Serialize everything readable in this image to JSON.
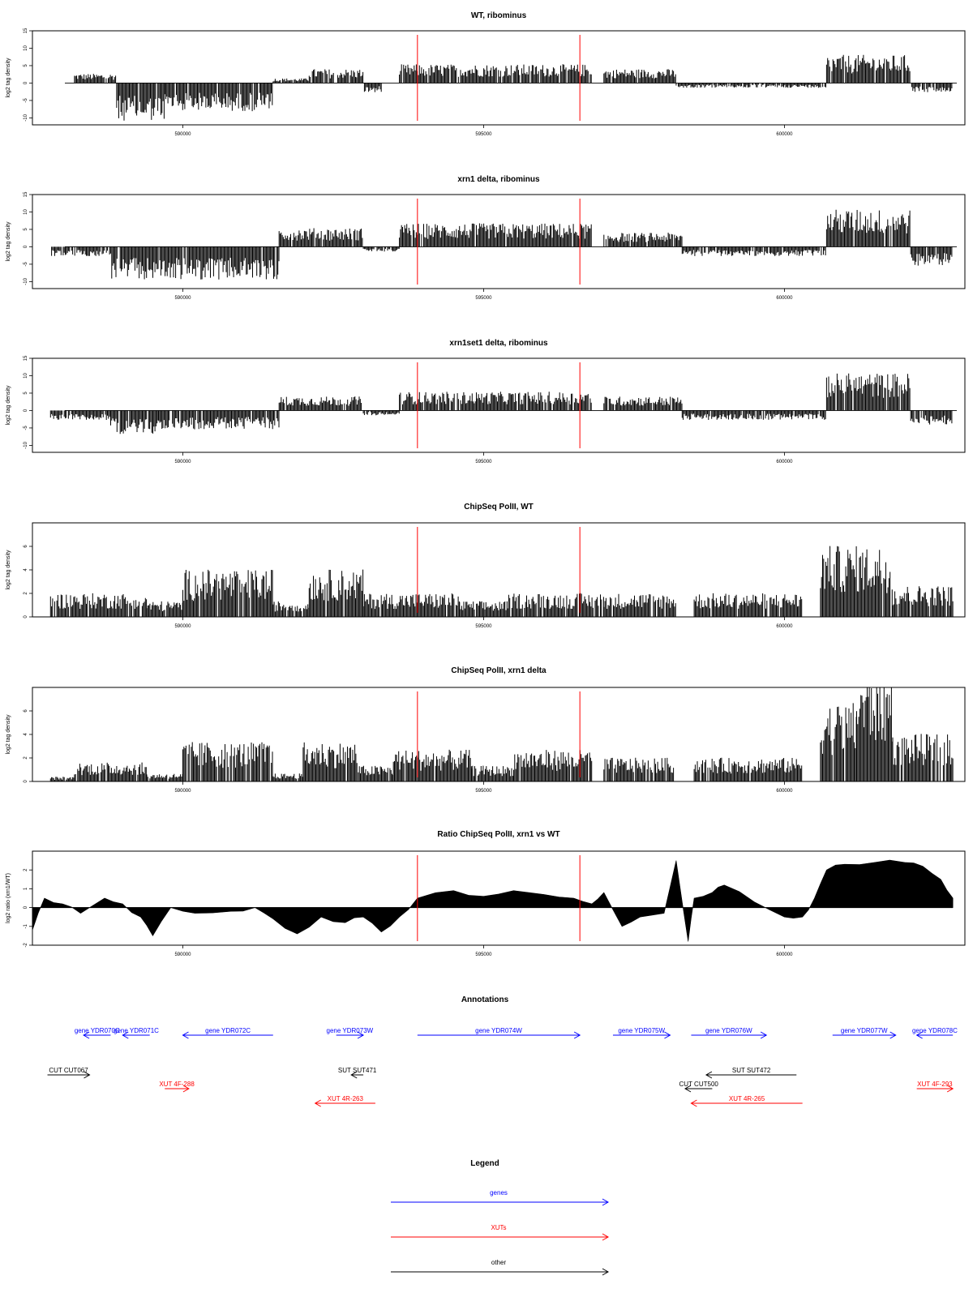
{
  "chart_data": [
    {
      "type": "bar",
      "title": "WT, ribominus",
      "ylabel": "log2 tag density",
      "xlabel": "",
      "ylim": [
        -12,
        15
      ],
      "yticks": [
        "-10",
        "-5",
        "0",
        "5",
        "10",
        "15"
      ],
      "xlim": [
        587500,
        603000
      ],
      "xticks": [
        "590000",
        "595000",
        "600000"
      ],
      "marker_positions": [
        593900,
        596600
      ],
      "grid": false,
      "segments": [
        {
          "start": 588200,
          "end": 588900,
          "level": 2
        },
        {
          "start": 588900,
          "end": 589700,
          "level": -8
        },
        {
          "start": 589700,
          "end": 591500,
          "level": -6
        },
        {
          "start": 591500,
          "end": 592100,
          "level": 1
        },
        {
          "start": 592100,
          "end": 593000,
          "level": 3
        },
        {
          "start": 593000,
          "end": 593300,
          "level": -2
        },
        {
          "start": 593600,
          "end": 596800,
          "level": 4
        },
        {
          "start": 597000,
          "end": 598200,
          "level": 3
        },
        {
          "start": 598200,
          "end": 600700,
          "level": -1
        },
        {
          "start": 600700,
          "end": 602100,
          "level": 6
        },
        {
          "start": 602100,
          "end": 602800,
          "level": -2
        }
      ]
    },
    {
      "type": "bar",
      "title": "xrn1 delta, ribominus",
      "ylabel": "log2 tag density",
      "xlabel": "",
      "ylim": [
        -12,
        15
      ],
      "yticks": [
        "-10",
        "-5",
        "0",
        "5",
        "10",
        "15"
      ],
      "xlim": [
        587500,
        603000
      ],
      "xticks": [
        "590000",
        "595000",
        "600000"
      ],
      "marker_positions": [
        593900,
        596600
      ],
      "grid": false,
      "segments": [
        {
          "start": 587800,
          "end": 588800,
          "level": -2
        },
        {
          "start": 588800,
          "end": 589600,
          "level": -7
        },
        {
          "start": 589600,
          "end": 591600,
          "level": -7
        },
        {
          "start": 591600,
          "end": 593000,
          "level": 4
        },
        {
          "start": 593000,
          "end": 593600,
          "level": -1
        },
        {
          "start": 593600,
          "end": 596800,
          "level": 5
        },
        {
          "start": 597000,
          "end": 598300,
          "level": 3
        },
        {
          "start": 598300,
          "end": 600700,
          "level": -2
        },
        {
          "start": 600700,
          "end": 602100,
          "level": 8
        },
        {
          "start": 602100,
          "end": 602800,
          "level": -4
        }
      ]
    },
    {
      "type": "bar",
      "title": "xrn1set1 delta, ribominus",
      "ylabel": "log2 tag density",
      "xlabel": "",
      "ylim": [
        -12,
        15
      ],
      "yticks": [
        "-10",
        "-5",
        "0",
        "5",
        "10",
        "15"
      ],
      "xlim": [
        587500,
        603000
      ],
      "xticks": [
        "590000",
        "595000",
        "600000"
      ],
      "marker_positions": [
        593900,
        596600
      ],
      "grid": false,
      "segments": [
        {
          "start": 587800,
          "end": 588800,
          "level": -2
        },
        {
          "start": 588800,
          "end": 589600,
          "level": -5
        },
        {
          "start": 589600,
          "end": 591600,
          "level": -4
        },
        {
          "start": 591600,
          "end": 593000,
          "level": 3
        },
        {
          "start": 593000,
          "end": 593600,
          "level": -1
        },
        {
          "start": 593600,
          "end": 596800,
          "level": 4
        },
        {
          "start": 597000,
          "end": 598300,
          "level": 3
        },
        {
          "start": 598300,
          "end": 600700,
          "level": -2
        },
        {
          "start": 600700,
          "end": 602100,
          "level": 8
        },
        {
          "start": 602100,
          "end": 602800,
          "level": -3
        }
      ]
    },
    {
      "type": "bar",
      "title": "ChipSeq PolII, WT",
      "ylabel": "log2 tag density",
      "xlabel": "",
      "ylim": [
        0,
        8
      ],
      "yticks": [
        "0",
        "2",
        "4",
        "6"
      ],
      "xlim": [
        587500,
        603000
      ],
      "xticks": [
        "590000",
        "595000",
        "600000"
      ],
      "marker_positions": [
        593900,
        596600
      ],
      "grid": false,
      "segments": [
        {
          "start": 587800,
          "end": 589400,
          "level": 1.5
        },
        {
          "start": 589400,
          "end": 590000,
          "level": 1
        },
        {
          "start": 590000,
          "end": 591500,
          "level": 3
        },
        {
          "start": 591500,
          "end": 592100,
          "level": 1
        },
        {
          "start": 592100,
          "end": 593000,
          "level": 3
        },
        {
          "start": 593000,
          "end": 594600,
          "level": 1.5
        },
        {
          "start": 594600,
          "end": 595400,
          "level": 1
        },
        {
          "start": 595400,
          "end": 597000,
          "level": 1.5
        },
        {
          "start": 597000,
          "end": 598200,
          "level": 1.5
        },
        {
          "start": 598500,
          "end": 600300,
          "level": 1.5
        },
        {
          "start": 600600,
          "end": 601800,
          "level": 4.5
        },
        {
          "start": 601800,
          "end": 602800,
          "level": 2
        }
      ]
    },
    {
      "type": "bar",
      "title": "ChipSeq PolII, xrn1 delta",
      "ylabel": "log2 tag density",
      "xlabel": "",
      "ylim": [
        0,
        8
      ],
      "yticks": [
        "0",
        "2",
        "4",
        "6"
      ],
      "xlim": [
        587500,
        603000
      ],
      "xticks": [
        "590000",
        "595000",
        "600000"
      ],
      "marker_positions": [
        593900,
        596600
      ],
      "grid": false,
      "segments": [
        {
          "start": 587800,
          "end": 588200,
          "level": 0.3
        },
        {
          "start": 588200,
          "end": 589400,
          "level": 1.2
        },
        {
          "start": 589400,
          "end": 590000,
          "level": 0.5
        },
        {
          "start": 590000,
          "end": 591500,
          "level": 2.5
        },
        {
          "start": 591500,
          "end": 592000,
          "level": 0.5
        },
        {
          "start": 592000,
          "end": 592900,
          "level": 2.5
        },
        {
          "start": 592900,
          "end": 593500,
          "level": 1
        },
        {
          "start": 593500,
          "end": 594800,
          "level": 2
        },
        {
          "start": 594800,
          "end": 595500,
          "level": 1
        },
        {
          "start": 595500,
          "end": 596800,
          "level": 2
        },
        {
          "start": 597000,
          "end": 598200,
          "level": 1.5
        },
        {
          "start": 598500,
          "end": 600300,
          "level": 1.5
        },
        {
          "start": 600600,
          "end": 601200,
          "level": 5
        },
        {
          "start": 601200,
          "end": 601800,
          "level": 7
        },
        {
          "start": 601800,
          "end": 602800,
          "level": 3
        }
      ]
    },
    {
      "type": "area",
      "title": "Ratio ChipSeq PolII, xrn1 vs WT",
      "ylabel": "log2 ratio (xrn1/WT)",
      "xlabel": "",
      "ylim": [
        -2,
        3
      ],
      "yticks": [
        "-2",
        "-1",
        "0",
        "1",
        "2"
      ],
      "xlim": [
        587500,
        603000
      ],
      "xticks": [
        "590000",
        "595000",
        "600000"
      ],
      "marker_positions": [
        593900,
        596600
      ],
      "grid": false,
      "x": [
        587500,
        587700,
        588000,
        588300,
        588700,
        589000,
        589300,
        589500,
        589800,
        590200,
        590800,
        591200,
        591500,
        591900,
        592300,
        592700,
        593000,
        593300,
        593600,
        593900,
        594500,
        595000,
        595500,
        596000,
        596500,
        596800,
        597000,
        597300,
        597600,
        598000,
        598200,
        598400,
        598500,
        598800,
        599000,
        599500,
        600000,
        600300,
        600500,
        600700,
        601000,
        601500,
        602000,
        602300,
        602600,
        602800
      ],
      "y": [
        -1.2,
        0.5,
        0.2,
        -0.3,
        0.5,
        0.2,
        -0.5,
        -1.5,
        0,
        -0.3,
        -0.2,
        0,
        -0.6,
        -1.4,
        -0.5,
        -0.8,
        -0.5,
        -1.3,
        -0.5,
        0.5,
        0.9,
        0.6,
        0.9,
        0.7,
        0.5,
        0.2,
        0.8,
        -1,
        -0.5,
        -0.3,
        2.5,
        -1.8,
        0.5,
        0.8,
        1.2,
        0.3,
        -0.5,
        -0.5,
        0.5,
        2,
        2.3,
        2.4,
        2.4,
        2.2,
        1.5,
        0.5
      ]
    }
  ],
  "annotations": {
    "title": "Annotations",
    "items": [
      {
        "kind": "gene",
        "name": "YDR070C",
        "start": 588800,
        "end": 588350,
        "row": 0
      },
      {
        "kind": "gene",
        "name": "YDR071C",
        "start": 589450,
        "end": 589000,
        "row": 0
      },
      {
        "kind": "gene",
        "name": "YDR072C",
        "start": 591500,
        "end": 590000,
        "row": 0
      },
      {
        "kind": "gene",
        "name": "YDR073W",
        "start": 592550,
        "end": 593000,
        "row": 0
      },
      {
        "kind": "gene",
        "name": "YDR074W",
        "start": 593900,
        "end": 596600,
        "row": 0
      },
      {
        "kind": "gene",
        "name": "YDR075W",
        "start": 597150,
        "end": 598100,
        "row": 0
      },
      {
        "kind": "gene",
        "name": "YDR076W",
        "start": 598450,
        "end": 599700,
        "row": 0
      },
      {
        "kind": "gene",
        "name": "YDR077W",
        "start": 600800,
        "end": 601850,
        "row": 0
      },
      {
        "kind": "gene",
        "name": "YDR078C",
        "start": 602800,
        "end": 602200,
        "row": 0
      },
      {
        "kind": "CUT",
        "name": "CUT067",
        "start": 587750,
        "end": 588450,
        "row": 1
      },
      {
        "kind": "SUT",
        "name": "SUT471",
        "start": 593000,
        "end": 592800,
        "row": 1
      },
      {
        "kind": "SUT",
        "name": "SUT472",
        "start": 600200,
        "end": 598700,
        "row": 1
      },
      {
        "kind": "CUT",
        "name": "CUT500",
        "start": 598800,
        "end": 598350,
        "row": 2
      },
      {
        "kind": "XUT",
        "name": "4F-288",
        "start": 589700,
        "end": 590100,
        "row": 2
      },
      {
        "kind": "XUT",
        "name": "4F-293",
        "start": 602200,
        "end": 602800,
        "row": 2
      },
      {
        "kind": "XUT",
        "name": "4R-263",
        "start": 593200,
        "end": 592200,
        "row": 3
      },
      {
        "kind": "XUT",
        "name": "4R-265",
        "start": 600300,
        "end": 598450,
        "row": 3
      }
    ]
  },
  "legend": {
    "title": "Legend",
    "items": [
      {
        "label": "genes",
        "color": "#0000ff"
      },
      {
        "label": "XUTs",
        "color": "#ff0000"
      },
      {
        "label": "other",
        "color": "#000000"
      }
    ]
  },
  "colors": {
    "gene": "#0000ff",
    "XUT": "#ff0000",
    "other": "#000000",
    "marker": "#ff0000"
  }
}
